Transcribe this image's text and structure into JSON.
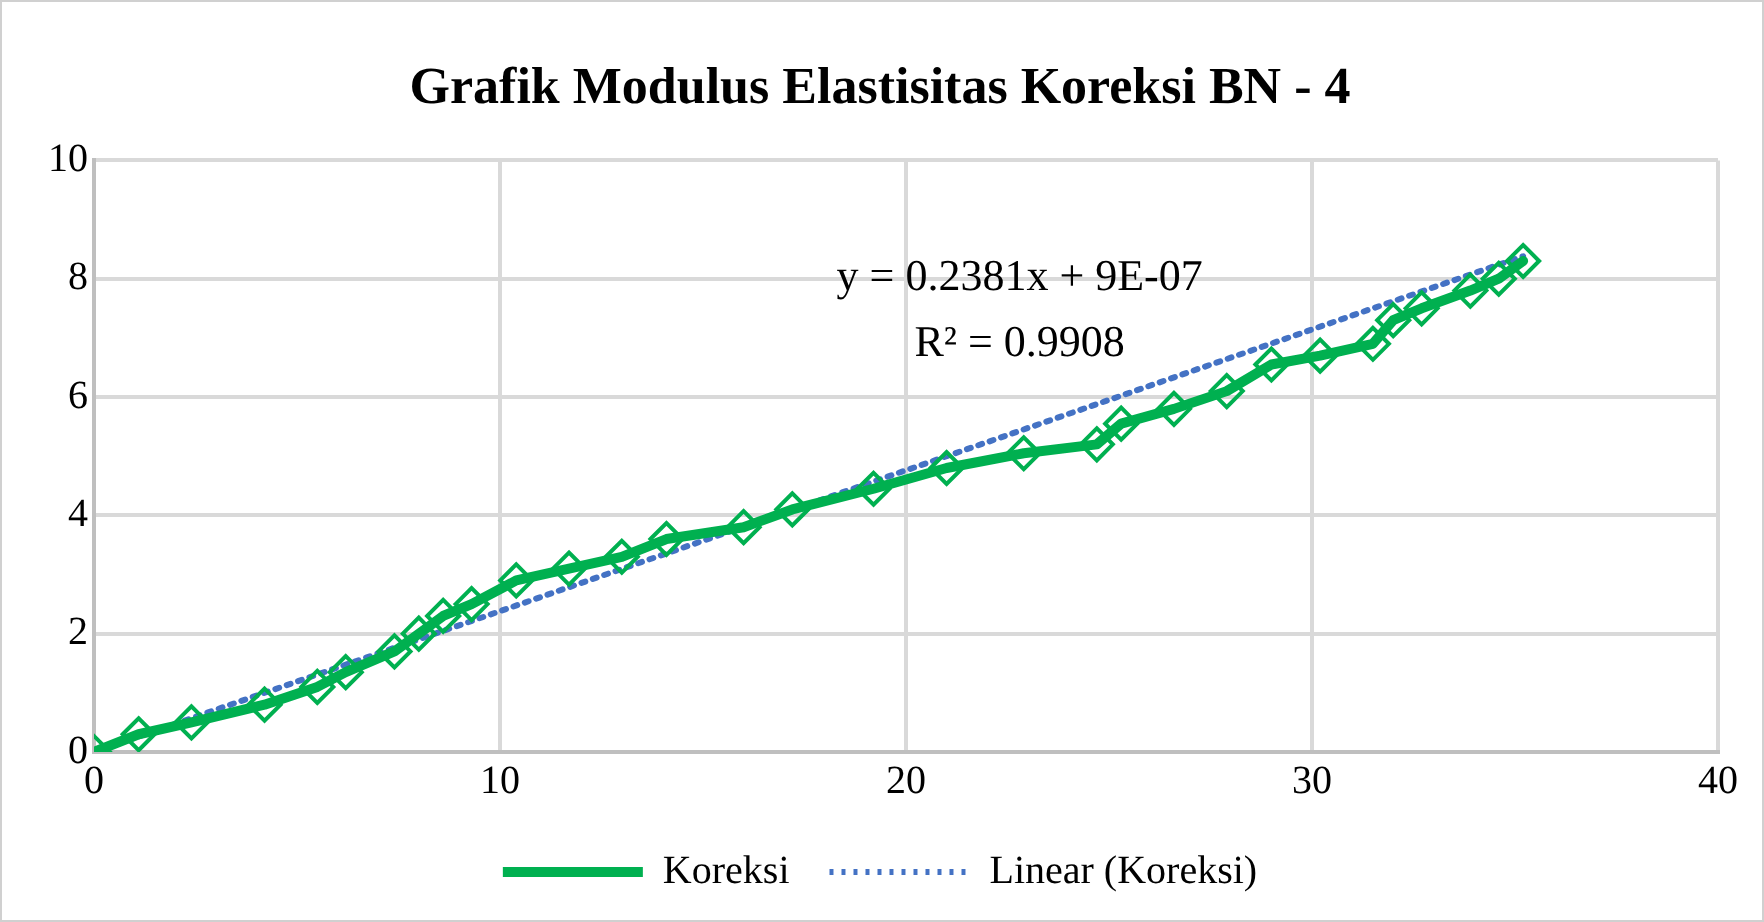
{
  "chart_data": {
    "type": "line",
    "title": "Grafik Modulus Elastisitas Koreksi BN - 4",
    "xlim": [
      0,
      40
    ],
    "xticks": [
      0,
      10,
      20,
      30,
      40
    ],
    "ylim": [
      0,
      10
    ],
    "yticks": [
      0,
      2,
      4,
      6,
      8,
      10
    ],
    "grid": true,
    "legend": "bottom",
    "series": [
      {
        "name": "Koreksi",
        "color": "#00b050",
        "marker": "diamond",
        "line_style": "solid",
        "x": [
          0,
          1.1,
          2.4,
          4.2,
          5.5,
          6.2,
          7.4,
          8.0,
          8.6,
          9.3,
          10.4,
          11.7,
          13.0,
          14.1,
          16.0,
          17.2,
          19.2,
          21.0,
          22.9,
          24.7,
          25.3,
          26.6,
          27.9,
          29.0,
          30.2,
          31.5,
          32.0,
          32.7,
          33.9,
          34.6,
          35.2
        ],
        "values": [
          0,
          0.3,
          0.5,
          0.8,
          1.1,
          1.35,
          1.7,
          2.0,
          2.3,
          2.5,
          2.9,
          3.1,
          3.3,
          3.6,
          3.8,
          4.1,
          4.45,
          4.8,
          5.05,
          5.2,
          5.55,
          5.8,
          6.1,
          6.55,
          6.7,
          6.9,
          7.3,
          7.5,
          7.8,
          8.0,
          8.3
        ]
      },
      {
        "name": "Linear (Koreksi)",
        "color": "#4472c4",
        "marker": "none",
        "line_style": "dotted",
        "x": [
          0,
          35.2
        ],
        "values": [
          0,
          8.38
        ]
      }
    ],
    "annotations": [
      "y = 0.2381x + 9E-07",
      "R² = 0.9908"
    ]
  }
}
